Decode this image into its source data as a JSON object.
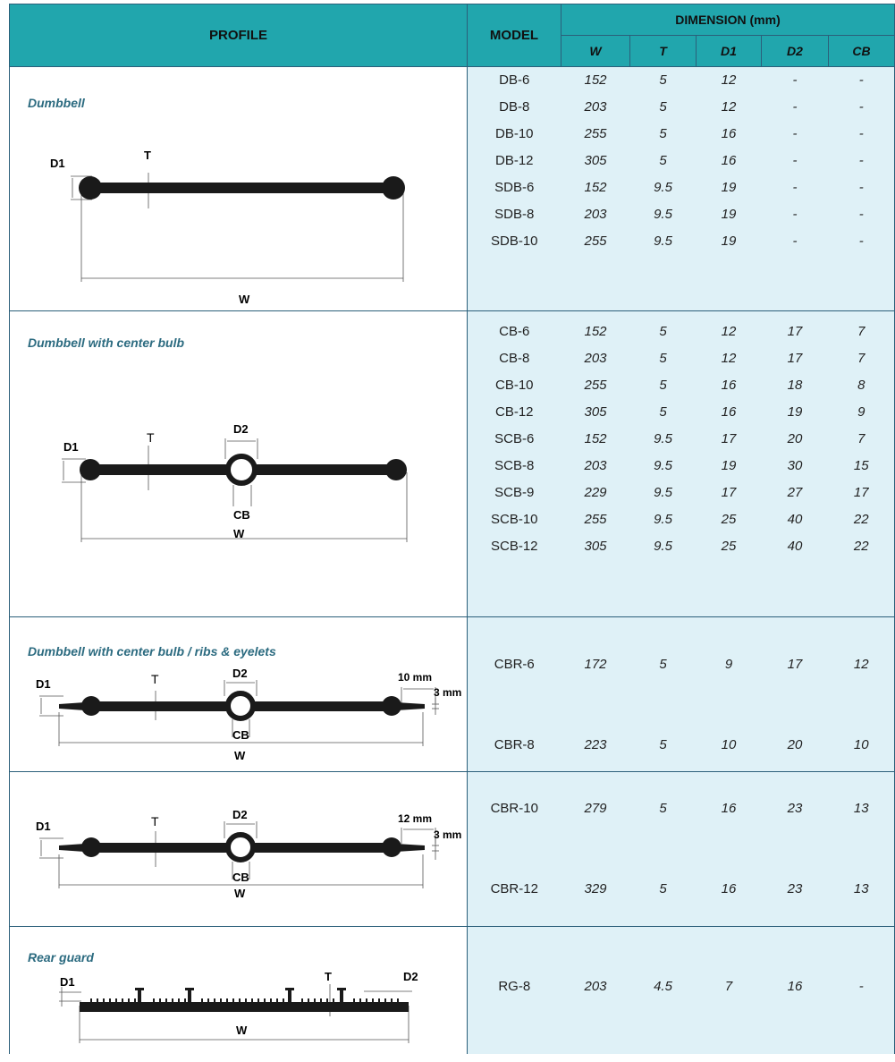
{
  "header": {
    "profile": "PROFILE",
    "model": "MODEL",
    "dimension": "DIMENSION (mm)",
    "columns": [
      "W",
      "T",
      "D1",
      "D2",
      "CB"
    ]
  },
  "groups": [
    {
      "title": "Dumbbell",
      "labels": {
        "d1": "D1",
        "t": "T",
        "w": "W"
      },
      "rows": [
        {
          "model": "DB-6",
          "w": "152",
          "t": "5",
          "d1": "12",
          "d2": "-",
          "cb": "-"
        },
        {
          "model": "DB-8",
          "w": "203",
          "t": "5",
          "d1": "12",
          "d2": "-",
          "cb": "-"
        },
        {
          "model": "DB-10",
          "w": "255",
          "t": "5",
          "d1": "16",
          "d2": "-",
          "cb": "-"
        },
        {
          "model": "DB-12",
          "w": "305",
          "t": "5",
          "d1": "16",
          "d2": "-",
          "cb": "-"
        },
        {
          "model": "SDB-6",
          "w": "152",
          "t": "9.5",
          "d1": "19",
          "d2": "-",
          "cb": "-"
        },
        {
          "model": "SDB-8",
          "w": "203",
          "t": "9.5",
          "d1": "19",
          "d2": "-",
          "cb": "-"
        },
        {
          "model": "SDB-10",
          "w": "255",
          "t": "9.5",
          "d1": "19",
          "d2": "-",
          "cb": "-"
        }
      ]
    },
    {
      "title": "Dumbbell  with  center  bulb",
      "labels": {
        "d1": "D1",
        "t": "T",
        "d2": "D2",
        "cb": "CB",
        "w": "W"
      },
      "rows": [
        {
          "model": "CB-6",
          "w": "152",
          "t": "5",
          "d1": "12",
          "d2": "17",
          "cb": "7"
        },
        {
          "model": "CB-8",
          "w": "203",
          "t": "5",
          "d1": "12",
          "d2": "17",
          "cb": "7"
        },
        {
          "model": "CB-10",
          "w": "255",
          "t": "5",
          "d1": "16",
          "d2": "18",
          "cb": "8"
        },
        {
          "model": "CB-12",
          "w": "305",
          "t": "5",
          "d1": "16",
          "d2": "19",
          "cb": "9"
        },
        {
          "model": "SCB-6",
          "w": "152",
          "t": "9.5",
          "d1": "17",
          "d2": "20",
          "cb": "7"
        },
        {
          "model": "SCB-8",
          "w": "203",
          "t": "9.5",
          "d1": "19",
          "d2": "30",
          "cb": "15"
        },
        {
          "model": "SCB-9",
          "w": "229",
          "t": "9.5",
          "d1": "17",
          "d2": "27",
          "cb": "17"
        },
        {
          "model": "SCB-10",
          "w": "255",
          "t": "9.5",
          "d1": "25",
          "d2": "40",
          "cb": "22"
        },
        {
          "model": "SCB-12",
          "w": "305",
          "t": "9.5",
          "d1": "25",
          "d2": "40",
          "cb": "22"
        }
      ]
    },
    {
      "title": "Dumbbell  with  center  bulb  / ribs  &  eyelets",
      "labels": {
        "d1": "D1",
        "t": "T",
        "d2": "D2",
        "cb": "CB",
        "w": "W",
        "e1": "10 mm",
        "e2": "3 mm"
      },
      "rows": [
        {
          "model": "CBR-6",
          "w": "172",
          "t": "5",
          "d1": "9",
          "d2": "17",
          "cb": "12"
        },
        {
          "model": "CBR-8",
          "w": "223",
          "t": "5",
          "d1": "10",
          "d2": "20",
          "cb": "10"
        }
      ]
    },
    {
      "title": "",
      "labels": {
        "d1": "D1",
        "t": "T",
        "d2": "D2",
        "cb": "CB",
        "w": "W",
        "e1": "12 mm",
        "e2": "3 mm"
      },
      "rows": [
        {
          "model": "CBR-10",
          "w": "279",
          "t": "5",
          "d1": "16",
          "d2": "23",
          "cb": "13"
        },
        {
          "model": "CBR-12",
          "w": "329",
          "t": "5",
          "d1": "16",
          "d2": "23",
          "cb": "13"
        }
      ]
    },
    {
      "title": "Rear  guard",
      "labels": {
        "d1": "D1",
        "t": "T",
        "d2": "D2",
        "w": "W"
      },
      "rows": [
        {
          "model": "RG-8",
          "w": "203",
          "t": "4.5",
          "d1": "7",
          "d2": "16",
          "cb": "-"
        }
      ]
    }
  ]
}
